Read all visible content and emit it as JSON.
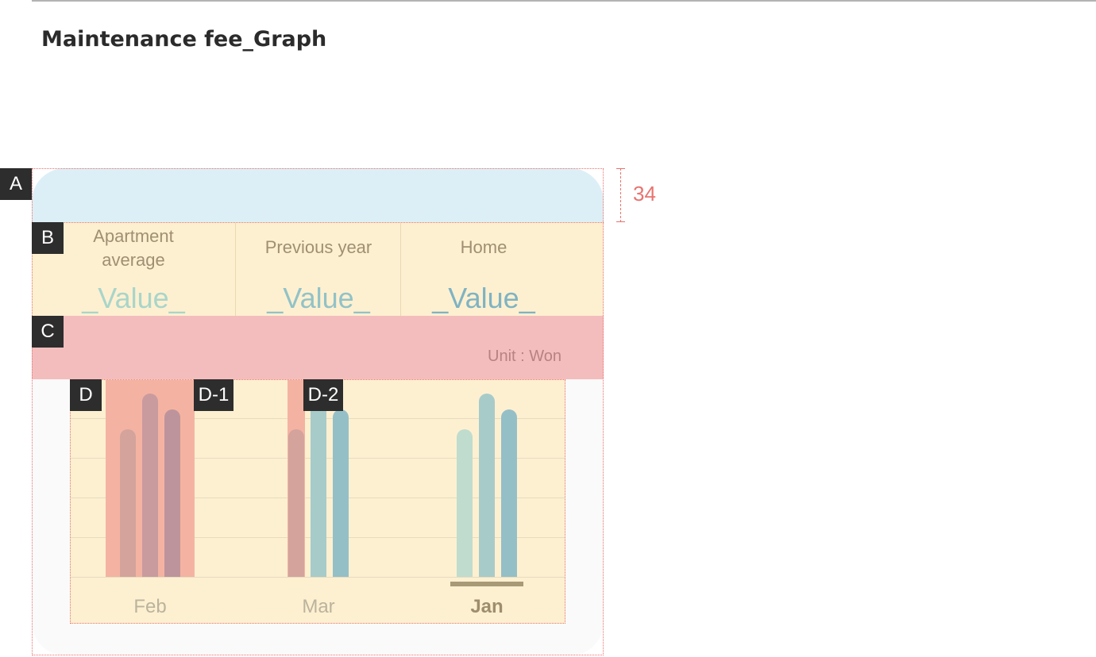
{
  "page": {
    "title": "Maintenance fee_Graph"
  },
  "markers": {
    "a": "A",
    "b": "B",
    "c": "C",
    "d": "D",
    "d1": "D-1",
    "d2": "D-2"
  },
  "dimension": {
    "label": "34"
  },
  "summary": {
    "columns": [
      {
        "label": "Apartment\naverage",
        "value": "_Value_",
        "color": "#a9d5c9"
      },
      {
        "label": "Previous year",
        "value": "_Value_",
        "color": "#92c2c7"
      },
      {
        "label": "Home",
        "value": "_Value_",
        "color": "#7fb3c2"
      }
    ]
  },
  "unit_label": "Unit : Won",
  "chart_data": {
    "type": "bar",
    "categories": [
      "Feb",
      "Mar",
      "Jan"
    ],
    "selected_category": "Jan",
    "highlighted_categories": [
      "Feb",
      "Mar"
    ],
    "series": [
      {
        "values": [
          0.75,
          0.75,
          0.75
        ]
      },
      {
        "values": [
          0.93,
          0.93,
          0.93
        ]
      },
      {
        "values": [
          0.85,
          0.85,
          0.85
        ]
      }
    ],
    "bar_colors": [
      "#bfdccf",
      "#a7cbc9",
      "#95bfc7"
    ],
    "muted_bar_colors": [
      "#d3a39c",
      "#c99b9f",
      "#bd949b"
    ],
    "highlight_color": "#f4b3a2",
    "gridlines": 5
  }
}
